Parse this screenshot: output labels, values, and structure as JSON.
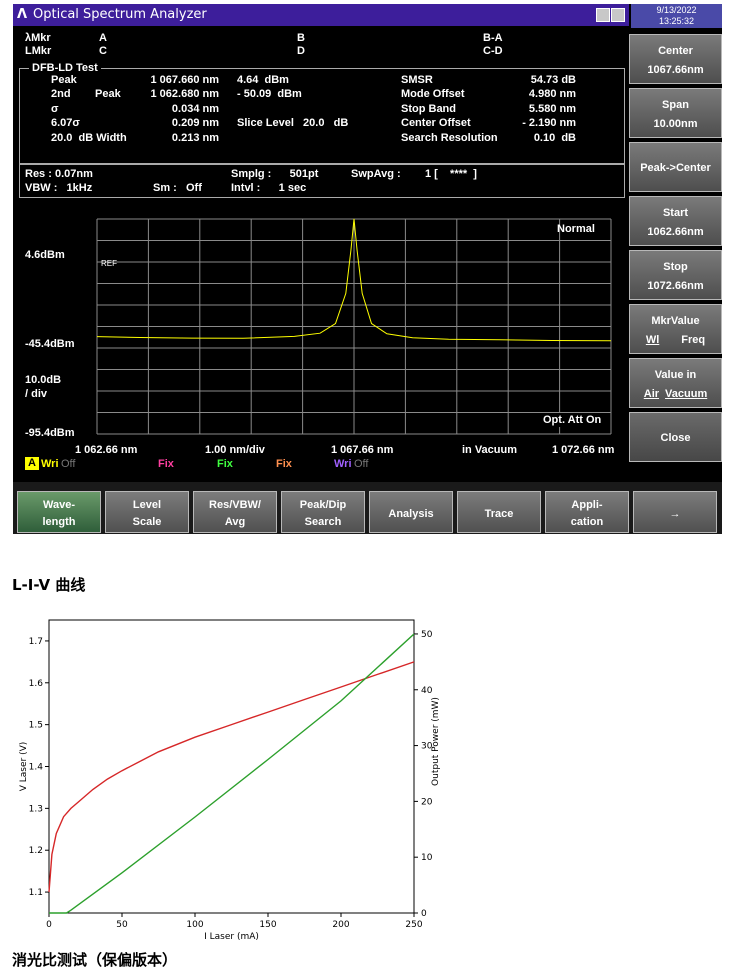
{
  "osa": {
    "title": "Optical Spectrum Analyzer",
    "date": "9/13/2022",
    "time": "13:25:32",
    "markers": {
      "row1": [
        "λMkr",
        "A",
        "B",
        "B-A"
      ],
      "row2": [
        "LMkr",
        "C",
        "D",
        "C-D"
      ]
    },
    "test_name": "DFB-LD Test",
    "results_left": [
      {
        "label": "Peak",
        "label2": "",
        "value": "1 067.660 nm",
        "value2": "4.64  dBm"
      },
      {
        "label": "2nd",
        "label2": "Peak",
        "value": "1 062.680 nm",
        "value2": "- 50.09  dBm"
      },
      {
        "label": "σ",
        "label2": "",
        "value": "0.034 nm",
        "value2": ""
      },
      {
        "label": "6.07σ",
        "label2": "",
        "value": "0.209 nm",
        "value2": "Slice Level   20.0   dB"
      },
      {
        "label": "20.0  dB Width",
        "label2": "",
        "value": "0.213 nm",
        "value2": ""
      }
    ],
    "results_right": [
      {
        "label": "SMSR",
        "value": "54.73 dB"
      },
      {
        "label": "Mode Offset",
        "value": "4.980 nm"
      },
      {
        "label": "Stop Band",
        "value": "5.580 nm"
      },
      {
        "label": "Center Offset",
        "value": "- 2.190 nm"
      },
      {
        "label": "Search Resolution",
        "value": "0.10  dB"
      }
    ],
    "settings": {
      "res": "Res : 0.07nm",
      "vbw": "VBW :   1kHz",
      "smplg": "Smplg :      501pt",
      "sm": "Sm :   Off",
      "intvl": "Intvl :      1 sec",
      "swpavg": "SwpAvg :",
      "swpavg_val": "1 [    ****  ]"
    },
    "graph": {
      "mode": "Normal",
      "ref": "REF",
      "y_top": "4.6dBm",
      "y_mid": "-45.4dBm",
      "scale": "10.0dB",
      "scale2": "/ div",
      "y_bottom": "-95.4dBm",
      "att": "Opt. Att On",
      "x_start": "1 062.66 nm",
      "x_div": "1.00 nm/div",
      "x_center": "1 067.66 nm",
      "medium": "in Vacuum",
      "x_stop": "1 072.66 nm"
    },
    "traces": [
      {
        "letter": "A",
        "state": "Wri",
        "state2": "Off",
        "color": "#ffff00"
      },
      {
        "state": "Fix",
        "color": "#ff3fa0"
      },
      {
        "state": "Fix",
        "color": "#40ff40"
      },
      {
        "state": "Fix",
        "color": "#ff9050"
      },
      {
        "state": "Wri",
        "state2": "Off",
        "color": "#a060ff"
      }
    ],
    "softkeys": [
      {
        "l1": "Center",
        "l2": "1067.66nm"
      },
      {
        "l1": "Span",
        "l2": "10.00nm"
      },
      {
        "l1": "Peak->Center",
        "l2": ""
      },
      {
        "l1": "Start",
        "l2": "1062.66nm"
      },
      {
        "l1": "Stop",
        "l2": "1072.66nm"
      },
      {
        "l1": "MkrValue",
        "l2a": "Wl",
        "l2b": "Freq"
      },
      {
        "l1": "Value in",
        "l2a": "Air",
        "l2b": "Vacuum"
      },
      {
        "l1": "Close",
        "l2": ""
      }
    ],
    "fkeys": [
      {
        "l1": "Wave-",
        "l2": "length"
      },
      {
        "l1": "Level",
        "l2": "Scale"
      },
      {
        "l1": "Res/VBW/",
        "l2": "Avg"
      },
      {
        "l1": "Peak/Dip",
        "l2": "Search"
      },
      {
        "single": "Analysis"
      },
      {
        "single": "Trace"
      },
      {
        "l1": "Appli-",
        "l2": "cation"
      },
      {
        "single": "→"
      }
    ]
  },
  "liv_heading": "L-I-V 曲线",
  "er_heading": "消光比测试（保偏版本）",
  "chart_data": [
    {
      "type": "line",
      "name": "OSA spectrum",
      "x_unit": "nm",
      "y_unit": "dBm",
      "xlim": [
        1062.66,
        1072.66
      ],
      "ylim": [
        -95.4,
        4.6
      ],
      "series": [
        {
          "color": "#ffff00",
          "x": [
            1062.66,
            1063.5,
            1064.5,
            1065.5,
            1066.5,
            1067.0,
            1067.3,
            1067.5,
            1067.6,
            1067.66,
            1067.72,
            1067.82,
            1068.0,
            1068.3,
            1068.8,
            1069.5,
            1070.5,
            1071.5,
            1072.66
          ],
          "y": [
            -50.1,
            -50.5,
            -50.8,
            -50.9,
            -50.0,
            -48.5,
            -44.0,
            -30.0,
            -10.0,
            4.64,
            -10.0,
            -30.0,
            -44.0,
            -48.8,
            -50.6,
            -51.3,
            -51.6,
            -51.9,
            -52.0
          ]
        }
      ]
    },
    {
      "type": "line",
      "name": "L-I-V",
      "xlabel": "I Laser (mA)",
      "ylabel": "V Laser (V)",
      "y2label": "Output Power (mW)",
      "xlim": [
        0,
        250
      ],
      "ylim": [
        1.05,
        1.75
      ],
      "y2lim": [
        0,
        52.5
      ],
      "xticks": [
        0,
        50,
        100,
        150,
        200,
        250
      ],
      "yticks": [
        1.1,
        1.2,
        1.3,
        1.4,
        1.5,
        1.6,
        1.7
      ],
      "y2ticks": [
        0,
        10,
        20,
        30,
        40,
        50
      ],
      "series": [
        {
          "axis": "left",
          "color": "#d62728",
          "x": [
            0,
            2,
            5,
            10,
            15,
            20,
            30,
            40,
            50,
            75,
            100,
            125,
            150,
            175,
            200,
            225,
            250
          ],
          "y": [
            1.1,
            1.19,
            1.24,
            1.28,
            1.3,
            1.315,
            1.345,
            1.37,
            1.39,
            1.435,
            1.47,
            1.5,
            1.53,
            1.56,
            1.59,
            1.62,
            1.65
          ]
        },
        {
          "axis": "right",
          "color": "#2ca02c",
          "x": [
            0,
            12,
            15,
            50,
            100,
            150,
            200,
            250
          ],
          "y": [
            0,
            0,
            0.5,
            7.2,
            17.2,
            27.5,
            38.0,
            50.0
          ]
        }
      ]
    }
  ]
}
